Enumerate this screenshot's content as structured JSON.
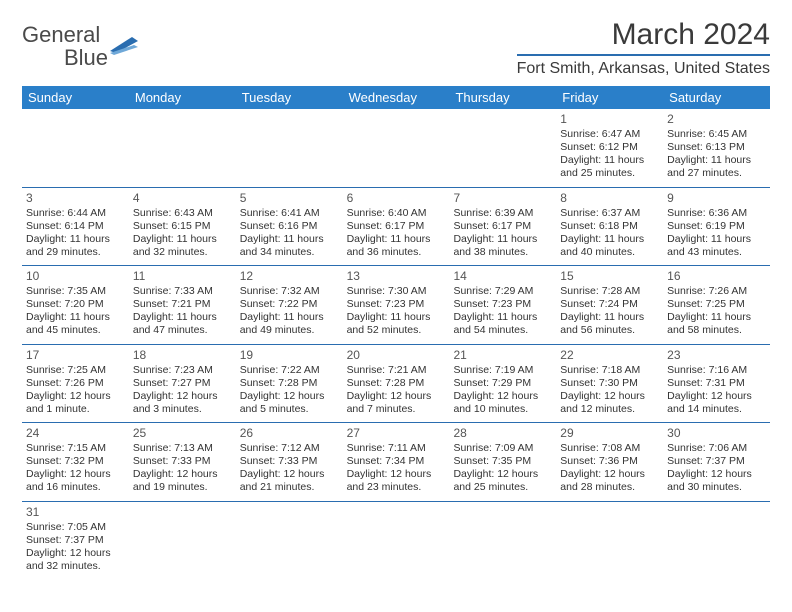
{
  "logo": {
    "text1": "General",
    "text2": "Blue"
  },
  "title": "March 2024",
  "location": "Fort Smith, Arkansas, United States",
  "colors": {
    "header_bg": "#2a7fc9",
    "accent": "#2a6db0",
    "text": "#333333",
    "title_text": "#3a3a3a"
  },
  "day_headers": [
    "Sunday",
    "Monday",
    "Tuesday",
    "Wednesday",
    "Thursday",
    "Friday",
    "Saturday"
  ],
  "weeks": [
    [
      {
        "day": "",
        "lines": []
      },
      {
        "day": "",
        "lines": []
      },
      {
        "day": "",
        "lines": []
      },
      {
        "day": "",
        "lines": []
      },
      {
        "day": "",
        "lines": []
      },
      {
        "day": "1",
        "lines": [
          "Sunrise: 6:47 AM",
          "Sunset: 6:12 PM",
          "Daylight: 11 hours and 25 minutes."
        ]
      },
      {
        "day": "2",
        "lines": [
          "Sunrise: 6:45 AM",
          "Sunset: 6:13 PM",
          "Daylight: 11 hours and 27 minutes."
        ]
      }
    ],
    [
      {
        "day": "3",
        "lines": [
          "Sunrise: 6:44 AM",
          "Sunset: 6:14 PM",
          "Daylight: 11 hours and 29 minutes."
        ]
      },
      {
        "day": "4",
        "lines": [
          "Sunrise: 6:43 AM",
          "Sunset: 6:15 PM",
          "Daylight: 11 hours and 32 minutes."
        ]
      },
      {
        "day": "5",
        "lines": [
          "Sunrise: 6:41 AM",
          "Sunset: 6:16 PM",
          "Daylight: 11 hours and 34 minutes."
        ]
      },
      {
        "day": "6",
        "lines": [
          "Sunrise: 6:40 AM",
          "Sunset: 6:17 PM",
          "Daylight: 11 hours and 36 minutes."
        ]
      },
      {
        "day": "7",
        "lines": [
          "Sunrise: 6:39 AM",
          "Sunset: 6:17 PM",
          "Daylight: 11 hours and 38 minutes."
        ]
      },
      {
        "day": "8",
        "lines": [
          "Sunrise: 6:37 AM",
          "Sunset: 6:18 PM",
          "Daylight: 11 hours and 40 minutes."
        ]
      },
      {
        "day": "9",
        "lines": [
          "Sunrise: 6:36 AM",
          "Sunset: 6:19 PM",
          "Daylight: 11 hours and 43 minutes."
        ]
      }
    ],
    [
      {
        "day": "10",
        "lines": [
          "Sunrise: 7:35 AM",
          "Sunset: 7:20 PM",
          "Daylight: 11 hours and 45 minutes."
        ]
      },
      {
        "day": "11",
        "lines": [
          "Sunrise: 7:33 AM",
          "Sunset: 7:21 PM",
          "Daylight: 11 hours and 47 minutes."
        ]
      },
      {
        "day": "12",
        "lines": [
          "Sunrise: 7:32 AM",
          "Sunset: 7:22 PM",
          "Daylight: 11 hours and 49 minutes."
        ]
      },
      {
        "day": "13",
        "lines": [
          "Sunrise: 7:30 AM",
          "Sunset: 7:23 PM",
          "Daylight: 11 hours and 52 minutes."
        ]
      },
      {
        "day": "14",
        "lines": [
          "Sunrise: 7:29 AM",
          "Sunset: 7:23 PM",
          "Daylight: 11 hours and 54 minutes."
        ]
      },
      {
        "day": "15",
        "lines": [
          "Sunrise: 7:28 AM",
          "Sunset: 7:24 PM",
          "Daylight: 11 hours and 56 minutes."
        ]
      },
      {
        "day": "16",
        "lines": [
          "Sunrise: 7:26 AM",
          "Sunset: 7:25 PM",
          "Daylight: 11 hours and 58 minutes."
        ]
      }
    ],
    [
      {
        "day": "17",
        "lines": [
          "Sunrise: 7:25 AM",
          "Sunset: 7:26 PM",
          "Daylight: 12 hours and 1 minute."
        ]
      },
      {
        "day": "18",
        "lines": [
          "Sunrise: 7:23 AM",
          "Sunset: 7:27 PM",
          "Daylight: 12 hours and 3 minutes."
        ]
      },
      {
        "day": "19",
        "lines": [
          "Sunrise: 7:22 AM",
          "Sunset: 7:28 PM",
          "Daylight: 12 hours and 5 minutes."
        ]
      },
      {
        "day": "20",
        "lines": [
          "Sunrise: 7:21 AM",
          "Sunset: 7:28 PM",
          "Daylight: 12 hours and 7 minutes."
        ]
      },
      {
        "day": "21",
        "lines": [
          "Sunrise: 7:19 AM",
          "Sunset: 7:29 PM",
          "Daylight: 12 hours and 10 minutes."
        ]
      },
      {
        "day": "22",
        "lines": [
          "Sunrise: 7:18 AM",
          "Sunset: 7:30 PM",
          "Daylight: 12 hours and 12 minutes."
        ]
      },
      {
        "day": "23",
        "lines": [
          "Sunrise: 7:16 AM",
          "Sunset: 7:31 PM",
          "Daylight: 12 hours and 14 minutes."
        ]
      }
    ],
    [
      {
        "day": "24",
        "lines": [
          "Sunrise: 7:15 AM",
          "Sunset: 7:32 PM",
          "Daylight: 12 hours and 16 minutes."
        ]
      },
      {
        "day": "25",
        "lines": [
          "Sunrise: 7:13 AM",
          "Sunset: 7:33 PM",
          "Daylight: 12 hours and 19 minutes."
        ]
      },
      {
        "day": "26",
        "lines": [
          "Sunrise: 7:12 AM",
          "Sunset: 7:33 PM",
          "Daylight: 12 hours and 21 minutes."
        ]
      },
      {
        "day": "27",
        "lines": [
          "Sunrise: 7:11 AM",
          "Sunset: 7:34 PM",
          "Daylight: 12 hours and 23 minutes."
        ]
      },
      {
        "day": "28",
        "lines": [
          "Sunrise: 7:09 AM",
          "Sunset: 7:35 PM",
          "Daylight: 12 hours and 25 minutes."
        ]
      },
      {
        "day": "29",
        "lines": [
          "Sunrise: 7:08 AM",
          "Sunset: 7:36 PM",
          "Daylight: 12 hours and 28 minutes."
        ]
      },
      {
        "day": "30",
        "lines": [
          "Sunrise: 7:06 AM",
          "Sunset: 7:37 PM",
          "Daylight: 12 hours and 30 minutes."
        ]
      }
    ],
    [
      {
        "day": "31",
        "lines": [
          "Sunrise: 7:05 AM",
          "Sunset: 7:37 PM",
          "Daylight: 12 hours and 32 minutes."
        ]
      },
      {
        "day": "",
        "lines": []
      },
      {
        "day": "",
        "lines": []
      },
      {
        "day": "",
        "lines": []
      },
      {
        "day": "",
        "lines": []
      },
      {
        "day": "",
        "lines": []
      },
      {
        "day": "",
        "lines": []
      }
    ]
  ]
}
